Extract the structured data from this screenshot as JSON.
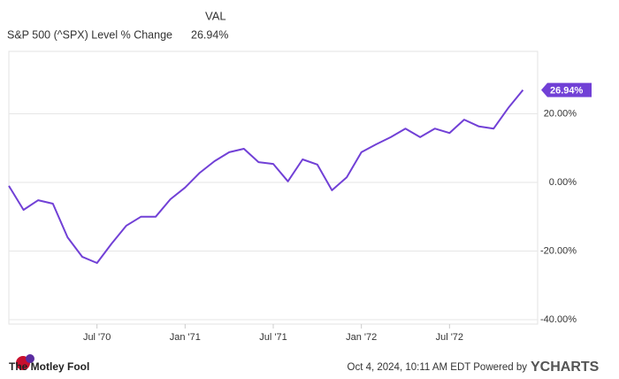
{
  "chart_data": {
    "type": "line",
    "legend_header": "VAL",
    "series": [
      {
        "name": "S&P 500 (^SPX) Level % Change",
        "color": "#7140d6",
        "values": [
          -1,
          -8,
          -5.2,
          -6.2,
          -16,
          -21.7,
          -23.5,
          -17.8,
          -12.6,
          -10,
          -10,
          -4.9,
          -1.5,
          2.8,
          6.2,
          8.8,
          9.8,
          5.9,
          5.4,
          0.3,
          6.7,
          5.2,
          -2.3,
          1.5,
          8.8,
          11.1,
          13.2,
          15.7,
          13.2,
          15.7,
          14.4,
          18.3,
          16.3,
          15.7,
          21.7,
          26.94
        ],
        "value_labels": [
          null,
          null,
          null,
          null,
          null,
          null,
          null,
          null,
          null,
          null,
          null,
          null,
          null,
          null,
          null,
          null,
          null,
          null,
          null,
          null,
          null,
          null,
          null,
          null,
          null,
          null,
          null,
          null,
          null,
          null,
          null,
          null,
          null,
          null,
          null,
          "26.94%"
        ]
      }
    ],
    "x": [
      "1970-01",
      "1970-02",
      "1970-03",
      "1970-04",
      "1970-05",
      "1970-06",
      "1970-07",
      "1970-08",
      "1970-09",
      "1970-10",
      "1970-11",
      "1970-12",
      "1971-01",
      "1971-02",
      "1971-03",
      "1971-04",
      "1971-05",
      "1971-06",
      "1971-07",
      "1971-08",
      "1971-09",
      "1971-10",
      "1971-11",
      "1971-12",
      "1972-01",
      "1972-02",
      "1972-03",
      "1972-04",
      "1972-05",
      "1972-06",
      "1972-07",
      "1972-08",
      "1972-09",
      "1972-10",
      "1972-11",
      "1972-12"
    ],
    "xlim": [
      "1970-01",
      "1973-01"
    ],
    "xticks": [
      {
        "value": "1970-07",
        "label": "Jul '70"
      },
      {
        "value": "1971-01",
        "label": "Jan '71"
      },
      {
        "value": "1971-07",
        "label": "Jul '71"
      },
      {
        "value": "1972-01",
        "label": "Jan '72"
      },
      {
        "value": "1972-07",
        "label": "Jul '72"
      }
    ],
    "ylim": [
      -41.3,
      38.2
    ],
    "yticks": [
      {
        "value": 20,
        "label": "20.00%"
      },
      {
        "value": 0,
        "label": "0.00%"
      },
      {
        "value": -20,
        "label": "-20.00%"
      },
      {
        "value": -40,
        "label": "-40.00%"
      }
    ],
    "grid": true,
    "footer": {
      "brand": "The Motley Fool",
      "note": "Oct 4, 2024, 10:11 AM EDT Powered by",
      "provider": "YCHARTS"
    }
  }
}
